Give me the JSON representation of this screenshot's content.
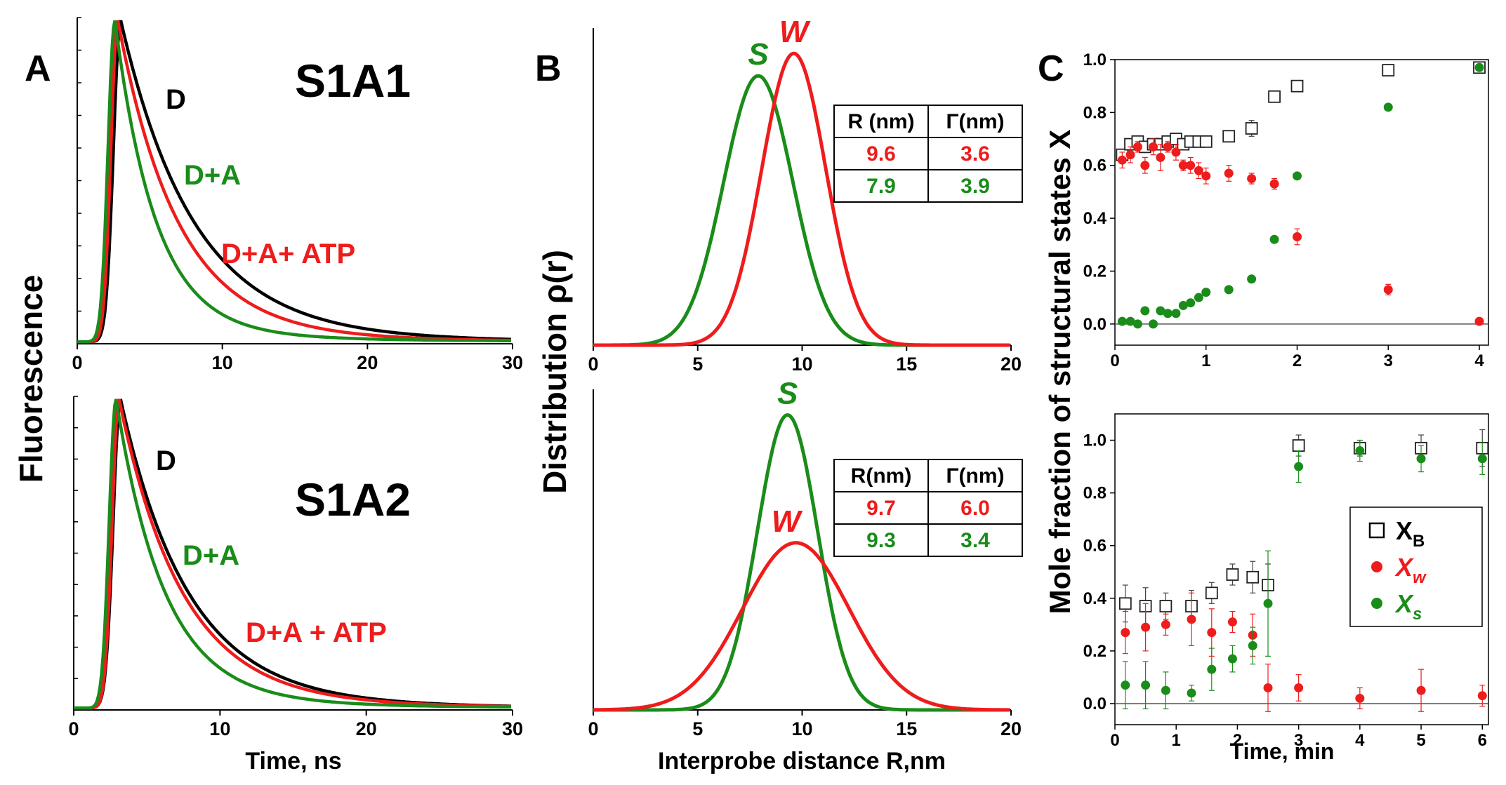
{
  "colors": {
    "D": "#000000",
    "DA": "#1a8c1a",
    "DAATP": "#ee1c1c",
    "S": "#1a8c1a",
    "W": "#ee1c1c",
    "XB": "#333333"
  },
  "panel_labels": {
    "A": "A",
    "B": "B",
    "C": "C"
  },
  "chart_data": [
    {
      "id": "A-top",
      "type": "line",
      "panel": "A",
      "annotation": "S1A1",
      "xlabel": "Time, ns",
      "ylabel": "Fluorescence",
      "xlim": [
        0,
        30
      ],
      "xticks": [
        0,
        10,
        20,
        30
      ],
      "ylim": [
        0,
        1
      ],
      "series": [
        {
          "name": "D",
          "color_key": "D",
          "peak_t": 3.0,
          "rise": 0.9,
          "decay": 5.0
        },
        {
          "name": "D+A",
          "color_key": "DA",
          "peak_t": 2.6,
          "rise": 0.85,
          "decay": 2.8
        },
        {
          "name": "D+A+ ATP",
          "color_key": "DAATP",
          "peak_t": 2.8,
          "rise": 0.85,
          "decay": 4.1
        }
      ]
    },
    {
      "id": "A-bottom",
      "type": "line",
      "panel": "A",
      "annotation": "S1A2",
      "xlabel": "Time, ns",
      "ylabel": "Fluorescence",
      "xlim": [
        0,
        30
      ],
      "xticks": [
        0,
        10,
        20,
        30
      ],
      "ylim": [
        0,
        1
      ],
      "series": [
        {
          "name": "D",
          "color_key": "D",
          "peak_t": 3.2,
          "rise": 0.9,
          "decay": 4.6
        },
        {
          "name": "D+A",
          "color_key": "DA",
          "peak_t": 2.9,
          "rise": 0.85,
          "decay": 3.3
        },
        {
          "name": "D+A + ATP",
          "color_key": "DAATP",
          "peak_t": 3.1,
          "rise": 0.85,
          "decay": 4.3
        }
      ]
    },
    {
      "id": "B-top",
      "type": "line",
      "panel": "B",
      "xlabel": "Interprobe distance R,nm",
      "ylabel": "Distribution ρ(r)",
      "xlim": [
        0,
        20
      ],
      "xticks": [
        0,
        5,
        10,
        15,
        20
      ],
      "series": [
        {
          "name": "W",
          "color_key": "W",
          "R": 9.6,
          "Gamma": 3.6
        },
        {
          "name": "S",
          "color_key": "S",
          "R": 7.9,
          "Gamma": 3.9
        }
      ],
      "table": {
        "header": [
          "R (nm)",
          "Γ(nm)"
        ],
        "rows": [
          [
            "9.6",
            "3.6"
          ],
          [
            "7.9",
            "3.9"
          ]
        ]
      }
    },
    {
      "id": "B-bottom",
      "type": "line",
      "panel": "B",
      "xlabel": "Interprobe distance R,nm",
      "ylabel": "Distribution ρ(r)",
      "xlim": [
        0,
        20
      ],
      "xticks": [
        0,
        5,
        10,
        15,
        20
      ],
      "series": [
        {
          "name": "W",
          "color_key": "W",
          "R": 9.7,
          "Gamma": 6.0
        },
        {
          "name": "S",
          "color_key": "S",
          "R": 9.3,
          "Gamma": 3.4
        }
      ],
      "table": {
        "header": [
          "R(nm)",
          "Γ(nm)"
        ],
        "rows": [
          [
            "9.7",
            "6.0"
          ],
          [
            "9.3",
            "3.4"
          ]
        ]
      }
    },
    {
      "id": "C-top",
      "type": "scatter",
      "panel": "C",
      "xlabel": "",
      "ylabel": "Mole fraction of structural states X",
      "xlim": [
        0,
        4.1
      ],
      "xticks": [
        0,
        1,
        2,
        3,
        4
      ],
      "ylim": [
        -0.08,
        1.0
      ],
      "yticks": [
        "0.0",
        "0.2",
        "0.4",
        "0.6",
        "0.8",
        "1.0"
      ],
      "series": [
        {
          "name": "XB",
          "marker": "open-square",
          "color_key": "XB",
          "points": [
            [
              0.08,
              0.64
            ],
            [
              0.17,
              0.68
            ],
            [
              0.25,
              0.69
            ],
            [
              0.33,
              0.67
            ],
            [
              0.42,
              0.68
            ],
            [
              0.5,
              0.68
            ],
            [
              0.58,
              0.69
            ],
            [
              0.67,
              0.7
            ],
            [
              0.75,
              0.68
            ],
            [
              0.83,
              0.69
            ],
            [
              0.92,
              0.69
            ],
            [
              1.0,
              0.69
            ],
            [
              1.25,
              0.71
            ],
            [
              1.5,
              0.74
            ],
            [
              1.75,
              0.86
            ],
            [
              2.0,
              0.9
            ],
            [
              3.0,
              0.96
            ],
            [
              4.0,
              0.97
            ]
          ],
          "err": [
            0.02,
            0.02,
            0.02,
            0.02,
            0.02,
            0.02,
            0.02,
            0.02,
            0.02,
            0.02,
            0.02,
            0.02,
            0.02,
            0.03,
            0.02,
            0.02,
            0.02,
            0.02
          ]
        },
        {
          "name": "Xw",
          "marker": "filled-circle",
          "color_key": "W",
          "points": [
            [
              0.08,
              0.62
            ],
            [
              0.17,
              0.64
            ],
            [
              0.25,
              0.67
            ],
            [
              0.33,
              0.6
            ],
            [
              0.42,
              0.67
            ],
            [
              0.5,
              0.63
            ],
            [
              0.58,
              0.67
            ],
            [
              0.67,
              0.65
            ],
            [
              0.75,
              0.6
            ],
            [
              0.83,
              0.6
            ],
            [
              0.92,
              0.58
            ],
            [
              1.0,
              0.56
            ],
            [
              1.25,
              0.57
            ],
            [
              1.5,
              0.55
            ],
            [
              1.75,
              0.53
            ],
            [
              2.0,
              0.33
            ],
            [
              3.0,
              0.13
            ],
            [
              4.0,
              0.01
            ]
          ],
          "err": [
            0.03,
            0.03,
            0.02,
            0.03,
            0.03,
            0.05,
            0.02,
            0.03,
            0.02,
            0.03,
            0.03,
            0.03,
            0.03,
            0.02,
            0.02,
            0.03,
            0.02,
            0.01
          ]
        },
        {
          "name": "Xs",
          "marker": "filled-circle",
          "color_key": "S",
          "points": [
            [
              0.08,
              0.01
            ],
            [
              0.17,
              0.01
            ],
            [
              0.25,
              0.0
            ],
            [
              0.33,
              0.05
            ],
            [
              0.42,
              0.0
            ],
            [
              0.5,
              0.05
            ],
            [
              0.58,
              0.04
            ],
            [
              0.67,
              0.04
            ],
            [
              0.75,
              0.07
            ],
            [
              0.83,
              0.08
            ],
            [
              0.92,
              0.1
            ],
            [
              1.0,
              0.12
            ],
            [
              1.25,
              0.13
            ],
            [
              1.5,
              0.17
            ],
            [
              1.75,
              0.32
            ],
            [
              2.0,
              0.56
            ],
            [
              3.0,
              0.82
            ],
            [
              4.0,
              0.97
            ]
          ],
          "err": [
            0,
            0,
            0,
            0,
            0,
            0,
            0,
            0,
            0,
            0,
            0,
            0,
            0,
            0,
            0,
            0,
            0,
            0
          ]
        }
      ]
    },
    {
      "id": "C-bottom",
      "type": "scatter",
      "panel": "C",
      "xlabel": "Time, min",
      "ylabel": "Mole fraction of structural states X",
      "xlim": [
        0,
        6.1
      ],
      "xticks": [
        0,
        1,
        2,
        3,
        4,
        5,
        6
      ],
      "ylim": [
        -0.08,
        1.1
      ],
      "yticks": [
        "0.0",
        "0.2",
        "0.4",
        "0.6",
        "0.8",
        "1.0"
      ],
      "legend": {
        "position": "right",
        "items": [
          {
            "series": "XB",
            "main": "X",
            "sub": "B"
          },
          {
            "series": "Xw",
            "main": "X",
            "sub": "w"
          },
          {
            "series": "Xs",
            "main": "X",
            "sub": "s"
          }
        ]
      },
      "series": [
        {
          "name": "XB",
          "marker": "open-square",
          "color_key": "XB",
          "points": [
            [
              0.17,
              0.38
            ],
            [
              0.5,
              0.37
            ],
            [
              0.83,
              0.37
            ],
            [
              1.25,
              0.37
            ],
            [
              1.58,
              0.42
            ],
            [
              1.92,
              0.49
            ],
            [
              2.25,
              0.48
            ],
            [
              2.5,
              0.45
            ],
            [
              3.0,
              0.98
            ],
            [
              4.0,
              0.97
            ],
            [
              5.0,
              0.97
            ],
            [
              6.0,
              0.97
            ]
          ],
          "err": [
            0.07,
            0.07,
            0.05,
            0.06,
            0.04,
            0.04,
            0.06,
            0.08,
            0.04,
            0.03,
            0.05,
            0.07
          ]
        },
        {
          "name": "Xw",
          "marker": "filled-circle",
          "color_key": "W",
          "points": [
            [
              0.17,
              0.27
            ],
            [
              0.5,
              0.29
            ],
            [
              0.83,
              0.3
            ],
            [
              1.25,
              0.32
            ],
            [
              1.58,
              0.27
            ],
            [
              1.92,
              0.31
            ],
            [
              2.25,
              0.26
            ],
            [
              2.5,
              0.06
            ],
            [
              3.0,
              0.06
            ],
            [
              4.0,
              0.02
            ],
            [
              5.0,
              0.05
            ],
            [
              6.0,
              0.03
            ]
          ],
          "err": [
            0.08,
            0.09,
            0.04,
            0.1,
            0.09,
            0.04,
            0.08,
            0.09,
            0.05,
            0.04,
            0.08,
            0.04
          ]
        },
        {
          "name": "Xs",
          "marker": "filled-circle",
          "color_key": "S",
          "points": [
            [
              0.17,
              0.07
            ],
            [
              0.5,
              0.07
            ],
            [
              0.83,
              0.05
            ],
            [
              1.25,
              0.04
            ],
            [
              1.58,
              0.13
            ],
            [
              1.92,
              0.17
            ],
            [
              2.25,
              0.22
            ],
            [
              2.5,
              0.38
            ],
            [
              3.0,
              0.9
            ],
            [
              4.0,
              0.96
            ],
            [
              5.0,
              0.93
            ],
            [
              6.0,
              0.93
            ]
          ],
          "err": [
            0.09,
            0.09,
            0.07,
            0.03,
            0.08,
            0.05,
            0.07,
            0.2,
            0.06,
            0.04,
            0.05,
            0.06
          ]
        }
      ]
    }
  ]
}
